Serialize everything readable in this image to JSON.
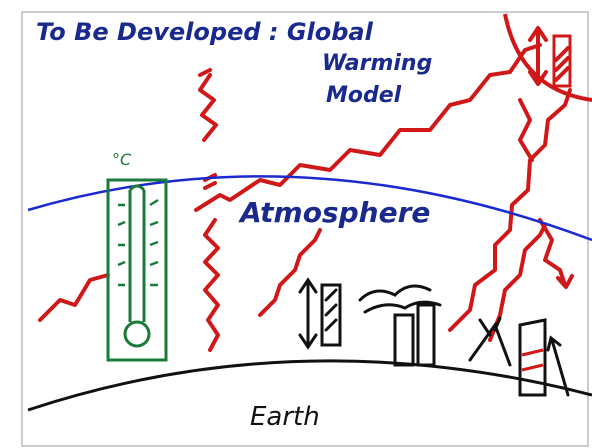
{
  "title": [
    "To Be Developed : Global",
    "Warming",
    "Model"
  ],
  "thermometer": {
    "unit": "°C"
  },
  "atmosphere": {
    "label": "Atmosphere"
  },
  "earth": {
    "label": "Earth"
  }
}
